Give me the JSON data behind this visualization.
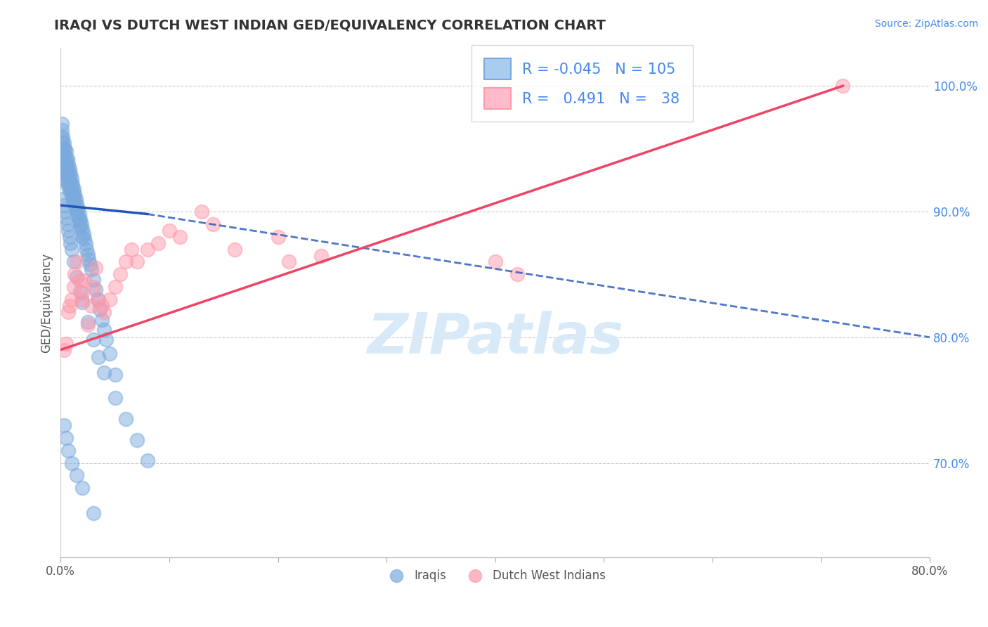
{
  "title": "IRAQI VS DUTCH WEST INDIAN GED/EQUIVALENCY CORRELATION CHART",
  "source": "Source: ZipAtlas.com",
  "ylabel": "GED/Equivalency",
  "xlim": [
    0.0,
    0.8
  ],
  "ylim": [
    0.625,
    1.03
  ],
  "x_ticks": [
    0.0,
    0.1,
    0.2,
    0.3,
    0.4,
    0.5,
    0.6,
    0.7,
    0.8
  ],
  "x_tick_labels": [
    "0.0%",
    "",
    "",
    "",
    "",
    "",
    "",
    "",
    "80.0%"
  ],
  "y_ticks": [
    0.7,
    0.8,
    0.9,
    1.0
  ],
  "y_tick_labels": [
    "70.0%",
    "80.0%",
    "90.0%",
    "100.0%"
  ],
  "blue_R": "-0.045",
  "blue_N": "105",
  "pink_R": "0.491",
  "pink_N": "38",
  "blue_color": "#7aaadd",
  "pink_color": "#ff99aa",
  "blue_line_color": "#2255bb",
  "pink_line_color": "#ee4466",
  "watermark": "ZIPatlas",
  "iraqis_x": [
    0.001,
    0.001,
    0.001,
    0.002,
    0.002,
    0.002,
    0.002,
    0.003,
    0.003,
    0.003,
    0.003,
    0.003,
    0.004,
    0.004,
    0.004,
    0.004,
    0.005,
    0.005,
    0.005,
    0.005,
    0.005,
    0.006,
    0.006,
    0.006,
    0.006,
    0.007,
    0.007,
    0.007,
    0.007,
    0.008,
    0.008,
    0.008,
    0.008,
    0.009,
    0.009,
    0.009,
    0.01,
    0.01,
    0.01,
    0.011,
    0.011,
    0.011,
    0.012,
    0.012,
    0.012,
    0.013,
    0.013,
    0.014,
    0.014,
    0.015,
    0.015,
    0.016,
    0.016,
    0.017,
    0.017,
    0.018,
    0.018,
    0.019,
    0.02,
    0.02,
    0.021,
    0.022,
    0.023,
    0.024,
    0.025,
    0.026,
    0.027,
    0.028,
    0.03,
    0.032,
    0.034,
    0.036,
    0.038,
    0.04,
    0.042,
    0.045,
    0.05,
    0.002,
    0.003,
    0.004,
    0.005,
    0.006,
    0.007,
    0.008,
    0.009,
    0.01,
    0.012,
    0.015,
    0.018,
    0.02,
    0.025,
    0.03,
    0.035,
    0.04,
    0.05,
    0.06,
    0.07,
    0.08,
    0.003,
    0.005,
    0.007,
    0.01,
    0.015,
    0.02,
    0.03
  ],
  "iraqis_y": [
    0.97,
    0.965,
    0.958,
    0.96,
    0.955,
    0.948,
    0.942,
    0.955,
    0.95,
    0.944,
    0.938,
    0.932,
    0.95,
    0.944,
    0.938,
    0.932,
    0.948,
    0.942,
    0.936,
    0.93,
    0.924,
    0.942,
    0.936,
    0.93,
    0.924,
    0.938,
    0.932,
    0.926,
    0.92,
    0.934,
    0.928,
    0.922,
    0.916,
    0.93,
    0.924,
    0.918,
    0.926,
    0.92,
    0.914,
    0.922,
    0.916,
    0.91,
    0.918,
    0.912,
    0.906,
    0.914,
    0.908,
    0.91,
    0.904,
    0.906,
    0.9,
    0.902,
    0.896,
    0.898,
    0.892,
    0.894,
    0.888,
    0.89,
    0.886,
    0.88,
    0.882,
    0.878,
    0.874,
    0.87,
    0.866,
    0.862,
    0.858,
    0.854,
    0.846,
    0.838,
    0.83,
    0.822,
    0.814,
    0.806,
    0.798,
    0.787,
    0.77,
    0.91,
    0.905,
    0.9,
    0.895,
    0.89,
    0.885,
    0.88,
    0.875,
    0.87,
    0.86,
    0.848,
    0.836,
    0.828,
    0.812,
    0.798,
    0.784,
    0.772,
    0.752,
    0.735,
    0.718,
    0.702,
    0.73,
    0.72,
    0.71,
    0.7,
    0.69,
    0.68,
    0.66
  ],
  "dutch_x": [
    0.003,
    0.005,
    0.007,
    0.008,
    0.01,
    0.012,
    0.013,
    0.015,
    0.017,
    0.019,
    0.02,
    0.022,
    0.025,
    0.028,
    0.03,
    0.032,
    0.035,
    0.038,
    0.04,
    0.045,
    0.05,
    0.055,
    0.06,
    0.065,
    0.07,
    0.08,
    0.09,
    0.1,
    0.11,
    0.13,
    0.16,
    0.2,
    0.21,
    0.24,
    0.4,
    0.42,
    0.72,
    0.14
  ],
  "dutch_y": [
    0.79,
    0.795,
    0.82,
    0.825,
    0.83,
    0.84,
    0.85,
    0.86,
    0.845,
    0.83,
    0.835,
    0.845,
    0.81,
    0.825,
    0.84,
    0.855,
    0.83,
    0.825,
    0.82,
    0.83,
    0.84,
    0.85,
    0.86,
    0.87,
    0.86,
    0.87,
    0.875,
    0.885,
    0.88,
    0.9,
    0.87,
    0.88,
    0.86,
    0.865,
    0.86,
    0.85,
    1.0,
    0.89
  ],
  "blue_line_x": [
    0.0,
    0.08,
    0.8
  ],
  "blue_line_y": [
    0.905,
    0.898,
    0.8
  ],
  "pink_line_x": [
    0.0,
    0.72
  ],
  "pink_line_y": [
    0.79,
    1.0
  ]
}
